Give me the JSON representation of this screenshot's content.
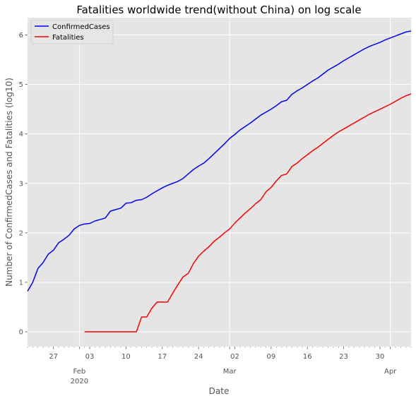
{
  "chart_data": {
    "type": "line",
    "title": "Fatalities worldwide trend(without China) on log scale",
    "xlabel": "Date",
    "ylabel": "Number of ConfirmedCases and Fatalities (log10)",
    "x_start": "2020-01-22",
    "x_end": "2020-04-05",
    "ylim": [
      -0.3,
      6.35
    ],
    "grid": true,
    "legend_position": "top-left",
    "background": "#E5E5E5",
    "x_ticks": [
      {
        "date": "2020-01-27",
        "label": "27"
      },
      {
        "date": "2020-02-03",
        "label": "03"
      },
      {
        "date": "2020-02-10",
        "label": "10"
      },
      {
        "date": "2020-02-17",
        "label": "17"
      },
      {
        "date": "2020-02-24",
        "label": "24"
      },
      {
        "date": "2020-03-02",
        "label": "02"
      },
      {
        "date": "2020-03-09",
        "label": "09"
      },
      {
        "date": "2020-03-16",
        "label": "16"
      },
      {
        "date": "2020-03-23",
        "label": "23"
      },
      {
        "date": "2020-03-30",
        "label": "30"
      }
    ],
    "month_labels": [
      {
        "date": "2020-02-01",
        "label": "Feb",
        "sublabel": "2020"
      },
      {
        "date": "2020-03-01",
        "label": "Mar",
        "sublabel": ""
      },
      {
        "date": "2020-04-01",
        "label": "Apr",
        "sublabel": ""
      }
    ],
    "y_ticks": [
      0,
      1,
      2,
      3,
      4,
      5,
      6
    ],
    "series": [
      {
        "name": "ConfirmedCases",
        "color": "#0000FF",
        "points": [
          [
            "2020-01-22",
            0.82
          ],
          [
            "2020-01-23",
            1.0
          ],
          [
            "2020-01-24",
            1.28
          ],
          [
            "2020-01-25",
            1.4
          ],
          [
            "2020-01-26",
            1.57
          ],
          [
            "2020-01-27",
            1.65
          ],
          [
            "2020-01-28",
            1.8
          ],
          [
            "2020-01-29",
            1.87
          ],
          [
            "2020-01-30",
            1.95
          ],
          [
            "2020-01-31",
            2.08
          ],
          [
            "2020-02-01",
            2.15
          ],
          [
            "2020-02-02",
            2.18
          ],
          [
            "2020-02-03",
            2.19
          ],
          [
            "2020-02-04",
            2.24
          ],
          [
            "2020-02-05",
            2.27
          ],
          [
            "2020-02-06",
            2.3
          ],
          [
            "2020-02-07",
            2.44
          ],
          [
            "2020-02-08",
            2.47
          ],
          [
            "2020-02-09",
            2.5
          ],
          [
            "2020-02-10",
            2.6
          ],
          [
            "2020-02-11",
            2.61
          ],
          [
            "2020-02-12",
            2.66
          ],
          [
            "2020-02-13",
            2.67
          ],
          [
            "2020-02-14",
            2.72
          ],
          [
            "2020-02-15",
            2.79
          ],
          [
            "2020-02-16",
            2.85
          ],
          [
            "2020-02-17",
            2.91
          ],
          [
            "2020-02-18",
            2.96
          ],
          [
            "2020-02-19",
            3.0
          ],
          [
            "2020-02-20",
            3.04
          ],
          [
            "2020-02-21",
            3.1
          ],
          [
            "2020-02-22",
            3.19
          ],
          [
            "2020-02-23",
            3.28
          ],
          [
            "2020-02-24",
            3.35
          ],
          [
            "2020-02-25",
            3.41
          ],
          [
            "2020-02-26",
            3.5
          ],
          [
            "2020-02-27",
            3.6
          ],
          [
            "2020-02-28",
            3.7
          ],
          [
            "2020-02-29",
            3.8
          ],
          [
            "2020-03-01",
            3.91
          ],
          [
            "2020-03-02",
            3.99
          ],
          [
            "2020-03-03",
            4.08
          ],
          [
            "2020-03-04",
            4.15
          ],
          [
            "2020-03-05",
            4.22
          ],
          [
            "2020-03-06",
            4.3
          ],
          [
            "2020-03-07",
            4.38
          ],
          [
            "2020-03-08",
            4.44
          ],
          [
            "2020-03-09",
            4.5
          ],
          [
            "2020-03-10",
            4.57
          ],
          [
            "2020-03-11",
            4.65
          ],
          [
            "2020-03-12",
            4.68
          ],
          [
            "2020-03-13",
            4.8
          ],
          [
            "2020-03-14",
            4.87
          ],
          [
            "2020-03-15",
            4.93
          ],
          [
            "2020-03-16",
            5.0
          ],
          [
            "2020-03-17",
            5.07
          ],
          [
            "2020-03-18",
            5.13
          ],
          [
            "2020-03-19",
            5.21
          ],
          [
            "2020-03-20",
            5.29
          ],
          [
            "2020-03-21",
            5.35
          ],
          [
            "2020-03-22",
            5.41
          ],
          [
            "2020-03-23",
            5.48
          ],
          [
            "2020-03-24",
            5.54
          ],
          [
            "2020-03-25",
            5.6
          ],
          [
            "2020-03-26",
            5.66
          ],
          [
            "2020-03-27",
            5.72
          ],
          [
            "2020-03-28",
            5.77
          ],
          [
            "2020-03-29",
            5.81
          ],
          [
            "2020-03-30",
            5.85
          ],
          [
            "2020-03-31",
            5.9
          ],
          [
            "2020-04-01",
            5.94
          ],
          [
            "2020-04-02",
            5.98
          ],
          [
            "2020-04-03",
            6.02
          ],
          [
            "2020-04-04",
            6.06
          ],
          [
            "2020-04-05",
            6.08
          ]
        ]
      },
      {
        "name": "Fatalities",
        "color": "#FF0000",
        "points": [
          [
            "2020-02-02",
            0.0
          ],
          [
            "2020-02-03",
            0.0
          ],
          [
            "2020-02-04",
            0.0
          ],
          [
            "2020-02-05",
            0.0
          ],
          [
            "2020-02-06",
            0.0
          ],
          [
            "2020-02-07",
            0.0
          ],
          [
            "2020-02-08",
            0.0
          ],
          [
            "2020-02-09",
            0.0
          ],
          [
            "2020-02-10",
            0.0
          ],
          [
            "2020-02-11",
            0.0
          ],
          [
            "2020-02-12",
            0.0
          ],
          [
            "2020-02-13",
            0.3
          ],
          [
            "2020-02-14",
            0.3
          ],
          [
            "2020-02-15",
            0.48
          ],
          [
            "2020-02-16",
            0.6
          ],
          [
            "2020-02-17",
            0.6
          ],
          [
            "2020-02-18",
            0.6
          ],
          [
            "2020-02-19",
            0.78
          ],
          [
            "2020-02-20",
            0.95
          ],
          [
            "2020-02-21",
            1.11
          ],
          [
            "2020-02-22",
            1.18
          ],
          [
            "2020-02-23",
            1.38
          ],
          [
            "2020-02-24",
            1.53
          ],
          [
            "2020-02-25",
            1.63
          ],
          [
            "2020-02-26",
            1.72
          ],
          [
            "2020-02-27",
            1.83
          ],
          [
            "2020-02-28",
            1.91
          ],
          [
            "2020-02-29",
            2.0
          ],
          [
            "2020-03-01",
            2.08
          ],
          [
            "2020-03-02",
            2.2
          ],
          [
            "2020-03-03",
            2.3
          ],
          [
            "2020-03-04",
            2.4
          ],
          [
            "2020-03-05",
            2.49
          ],
          [
            "2020-03-06",
            2.59
          ],
          [
            "2020-03-07",
            2.67
          ],
          [
            "2020-03-08",
            2.83
          ],
          [
            "2020-03-09",
            2.92
          ],
          [
            "2020-03-10",
            3.05
          ],
          [
            "2020-03-11",
            3.16
          ],
          [
            "2020-03-12",
            3.19
          ],
          [
            "2020-03-13",
            3.34
          ],
          [
            "2020-03-14",
            3.41
          ],
          [
            "2020-03-15",
            3.5
          ],
          [
            "2020-03-16",
            3.58
          ],
          [
            "2020-03-17",
            3.66
          ],
          [
            "2020-03-18",
            3.73
          ],
          [
            "2020-03-19",
            3.81
          ],
          [
            "2020-03-20",
            3.89
          ],
          [
            "2020-03-21",
            3.97
          ],
          [
            "2020-03-22",
            4.04
          ],
          [
            "2020-03-23",
            4.1
          ],
          [
            "2020-03-24",
            4.16
          ],
          [
            "2020-03-25",
            4.22
          ],
          [
            "2020-03-26",
            4.28
          ],
          [
            "2020-03-27",
            4.34
          ],
          [
            "2020-03-28",
            4.4
          ],
          [
            "2020-03-29",
            4.45
          ],
          [
            "2020-03-30",
            4.5
          ],
          [
            "2020-03-31",
            4.55
          ],
          [
            "2020-04-01",
            4.6
          ],
          [
            "2020-04-02",
            4.66
          ],
          [
            "2020-04-03",
            4.72
          ],
          [
            "2020-04-04",
            4.77
          ],
          [
            "2020-04-05",
            4.81
          ]
        ]
      }
    ]
  }
}
